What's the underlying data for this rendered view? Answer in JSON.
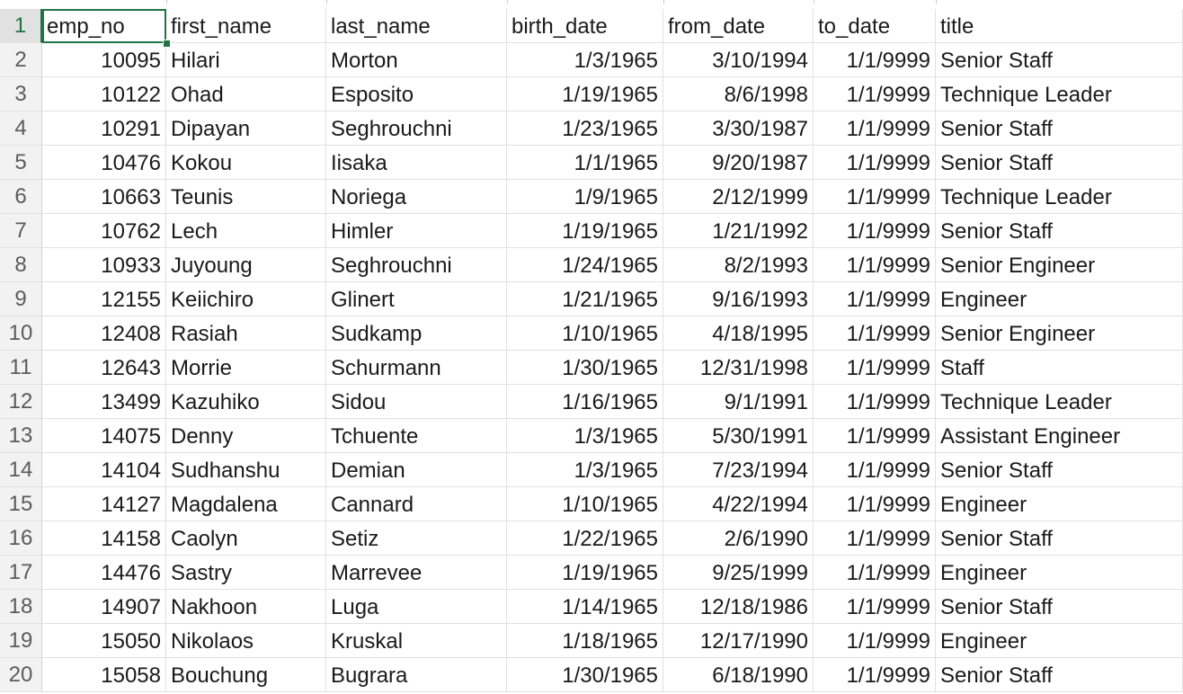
{
  "sheet": {
    "headers": [
      "emp_no",
      "first_name",
      "last_name",
      "birth_date",
      "from_date",
      "to_date",
      "title"
    ],
    "rows": [
      [
        "10095",
        "Hilari",
        "Morton",
        "1/3/1965",
        "3/10/1994",
        "1/1/9999",
        "Senior Staff"
      ],
      [
        "10122",
        "Ohad",
        "Esposito",
        "1/19/1965",
        "8/6/1998",
        "1/1/9999",
        "Technique Leader"
      ],
      [
        "10291",
        "Dipayan",
        "Seghrouchni",
        "1/23/1965",
        "3/30/1987",
        "1/1/9999",
        "Senior Staff"
      ],
      [
        "10476",
        "Kokou",
        "Iisaka",
        "1/1/1965",
        "9/20/1987",
        "1/1/9999",
        "Senior Staff"
      ],
      [
        "10663",
        "Teunis",
        "Noriega",
        "1/9/1965",
        "2/12/1999",
        "1/1/9999",
        "Technique Leader"
      ],
      [
        "10762",
        "Lech",
        "Himler",
        "1/19/1965",
        "1/21/1992",
        "1/1/9999",
        "Senior Staff"
      ],
      [
        "10933",
        "Juyoung",
        "Seghrouchni",
        "1/24/1965",
        "8/2/1993",
        "1/1/9999",
        "Senior Engineer"
      ],
      [
        "12155",
        "Keiichiro",
        "Glinert",
        "1/21/1965",
        "9/16/1993",
        "1/1/9999",
        "Engineer"
      ],
      [
        "12408",
        "Rasiah",
        "Sudkamp",
        "1/10/1965",
        "4/18/1995",
        "1/1/9999",
        "Senior Engineer"
      ],
      [
        "12643",
        "Morrie",
        "Schurmann",
        "1/30/1965",
        "12/31/1998",
        "1/1/9999",
        "Staff"
      ],
      [
        "13499",
        "Kazuhiko",
        "Sidou",
        "1/16/1965",
        "9/1/1991",
        "1/1/9999",
        "Technique Leader"
      ],
      [
        "14075",
        "Denny",
        "Tchuente",
        "1/3/1965",
        "5/30/1991",
        "1/1/9999",
        "Assistant Engineer"
      ],
      [
        "14104",
        "Sudhanshu",
        "Demian",
        "1/3/1965",
        "7/23/1994",
        "1/1/9999",
        "Senior Staff"
      ],
      [
        "14127",
        "Magdalena",
        "Cannard",
        "1/10/1965",
        "4/22/1994",
        "1/1/9999",
        "Engineer"
      ],
      [
        "14158",
        "Caolyn",
        "Setiz",
        "1/22/1965",
        "2/6/1990",
        "1/1/9999",
        "Senior Staff"
      ],
      [
        "14476",
        "Sastry",
        "Marrevee",
        "1/19/1965",
        "9/25/1999",
        "1/1/9999",
        "Engineer"
      ],
      [
        "14907",
        "Nakhoon",
        "Luga",
        "1/14/1965",
        "12/18/1986",
        "1/1/9999",
        "Senior Staff"
      ],
      [
        "15050",
        "Nikolaos",
        "Kruskal",
        "1/18/1965",
        "12/17/1990",
        "1/1/9999",
        "Engineer"
      ],
      [
        "15058",
        "Bouchung",
        "Bugrara",
        "1/30/1965",
        "6/18/1990",
        "1/1/9999",
        "Senior Staff"
      ]
    ],
    "row_numbers": [
      "1",
      "2",
      "3",
      "4",
      "5",
      "6",
      "7",
      "8",
      "9",
      "10",
      "11",
      "12",
      "13",
      "14",
      "15",
      "16",
      "17",
      "18",
      "19",
      "20"
    ],
    "colors": {
      "accent": "#217346",
      "gridline": "#e1e1e1",
      "header_bg": "#f2f2f2"
    }
  }
}
